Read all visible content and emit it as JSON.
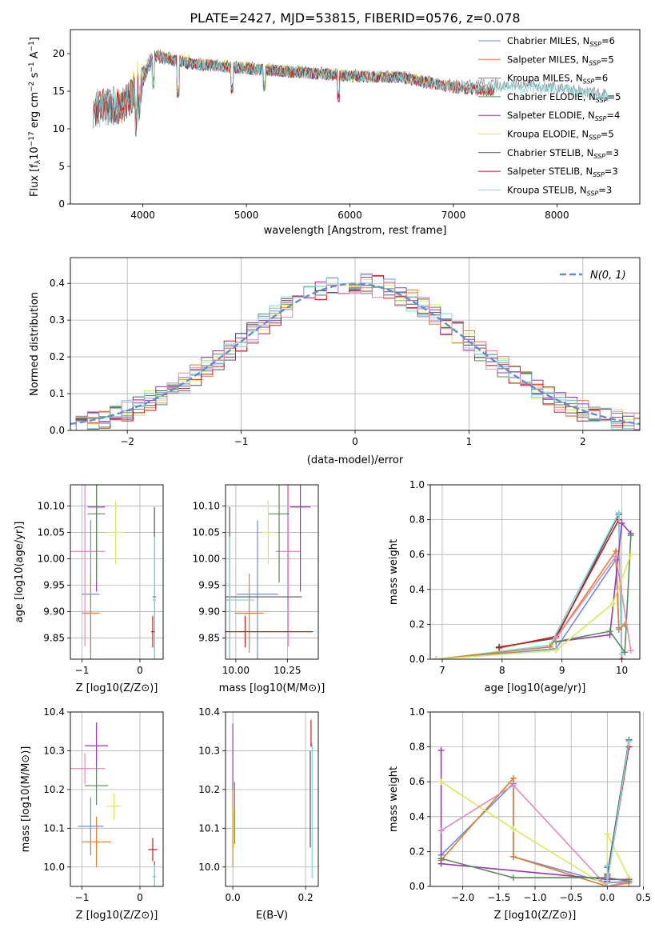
{
  "figure_title": "PLATE=2427, MJD=53815, FIBERID=0576, z=0.078",
  "colors": {
    "Chabrier MILES": "#6a8fd6",
    "Salpeter MILES": "#e37d2e",
    "Kroupa MILES": "#7f7f7f",
    "Chabrier ELODIE": "#5a8a5e",
    "Salpeter ELODIE": "#9b37b5",
    "Kroupa ELODIE": "#d9ea5a",
    "Chabrier STELIB": "#555555",
    "Salpeter STELIB": "#c41e1e",
    "Kroupa STELIB": "#7fd6dd",
    "normal_curve": "#5b8fd6",
    "pink": "#e38ab9",
    "grid": "#b0b0b0"
  },
  "chart_data": [
    {
      "type": "line",
      "id": "spectrum",
      "title": "PLATE=2427, MJD=53815, FIBERID=0576, z=0.078",
      "xlabel": "wavelength [Angstrom, rest frame]",
      "ylabel_parts": [
        "Flux [f",
        "λ",
        "10",
        "−17",
        " erg cm",
        "−2",
        " s",
        "−1",
        " A",
        "−1",
        "]"
      ],
      "xlim": [
        3300,
        8800
      ],
      "ylim": [
        0,
        23.2
      ],
      "xticks": [
        4000,
        5000,
        6000,
        7000,
        8000
      ],
      "yticks": [
        0,
        5,
        10,
        15,
        20
      ],
      "grid": false,
      "legend_position": "top-right",
      "series": [
        {
          "label": "Chabrier MILES",
          "nssp": "6",
          "color": "#6a8fd6",
          "x": [
            3520,
            3800,
            4000,
            4100,
            4500,
            5000,
            5500,
            6000,
            6500,
            7000,
            7400
          ],
          "y": [
            12.5,
            13.0,
            16.0,
            19.5,
            18.5,
            18.0,
            17.5,
            17.0,
            16.8,
            15.5,
            15.0
          ]
        },
        {
          "label": "Salpeter MILES",
          "nssp": "5",
          "color": "#e37d2e",
          "x": [
            3520,
            3800,
            4000,
            4100,
            4500,
            5000,
            5500,
            6000,
            6500,
            7000,
            7400
          ],
          "y": [
            12.8,
            13.2,
            16.2,
            19.8,
            18.7,
            18.1,
            17.6,
            17.1,
            16.9,
            15.6,
            15.1
          ]
        },
        {
          "label": "Kroupa MILES",
          "nssp": "6",
          "color": "#7f7f7f",
          "x": [
            3520,
            3800,
            4000,
            4100,
            4500,
            5000,
            5500,
            6000,
            6500,
            7000,
            7500,
            8000,
            8500
          ],
          "y": [
            13.0,
            13.5,
            16.5,
            20.0,
            18.8,
            18.2,
            17.7,
            17.2,
            17.0,
            15.8,
            16.0,
            15.5,
            14.5
          ]
        },
        {
          "label": "Chabrier ELODIE",
          "nssp": "5",
          "color": "#5a8a5e",
          "x": [
            3900,
            4100,
            4500,
            5000,
            5500,
            6000,
            6500,
            6800
          ],
          "y": [
            15.5,
            19.6,
            18.6,
            18.0,
            17.5,
            17.0,
            16.8,
            16.0
          ]
        },
        {
          "label": "Salpeter ELODIE",
          "nssp": "4",
          "color": "#9b37b5",
          "x": [
            3900,
            4100,
            4500,
            5000,
            5500,
            6000,
            6500,
            6800
          ],
          "y": [
            15.6,
            19.7,
            18.6,
            18.0,
            17.5,
            17.0,
            16.8,
            16.0
          ]
        },
        {
          "label": "Kroupa ELODIE",
          "nssp": "5",
          "color": "#d9ea5a",
          "x": [
            3900,
            4100,
            4500,
            5000,
            5500,
            6000,
            6500,
            6800
          ],
          "y": [
            15.8,
            20.0,
            18.9,
            18.2,
            17.6,
            17.1,
            16.9,
            16.1
          ]
        },
        {
          "label": "Chabrier STELIB",
          "nssp": "3",
          "color": "#555555",
          "x": [
            3520,
            3800,
            4000,
            4100,
            4500,
            5000,
            5500,
            6000,
            6500,
            7000,
            7400
          ],
          "y": [
            12.6,
            13.1,
            16.1,
            19.6,
            18.6,
            18.0,
            17.5,
            17.0,
            16.8,
            15.5,
            15.0
          ]
        },
        {
          "label": "Salpeter STELIB",
          "nssp": "3",
          "color": "#c41e1e",
          "x": [
            3520,
            3800,
            4000,
            4100,
            4500,
            5000,
            5500,
            6000,
            6500,
            7000,
            7400
          ],
          "y": [
            12.7,
            13.1,
            16.1,
            19.7,
            18.6,
            18.0,
            17.5,
            17.0,
            16.8,
            15.5,
            15.0
          ]
        },
        {
          "label": "Kroupa STELIB",
          "nssp": "3",
          "color": "#7fd6dd",
          "x": [
            3520,
            3800,
            4000,
            4100,
            4500,
            5000,
            5500,
            6000,
            6500,
            7000,
            7500,
            8000,
            8500
          ],
          "y": [
            12.5,
            13.0,
            16.0,
            19.8,
            18.6,
            18.0,
            17.5,
            17.0,
            16.8,
            15.5,
            15.6,
            15.3,
            14.2
          ]
        }
      ]
    },
    {
      "type": "line",
      "id": "residuals",
      "xlabel": "(data-model)/error",
      "ylabel": "Normed distribution",
      "xlim": [
        -2.5,
        2.5
      ],
      "ylim": [
        0,
        0.47
      ],
      "xticks": [
        -2,
        -1,
        0,
        1,
        2
      ],
      "yticks": [
        0.0,
        0.1,
        0.2,
        0.3,
        0.4
      ],
      "grid": true,
      "legend_position": "top-right",
      "legend_label": "N(0,1)",
      "curve": "standard normal pdf",
      "step_series_colors": [
        "#6a8fd6",
        "#e37d2e",
        "#d9ea5a",
        "#5a8a5e",
        "#9b37b5",
        "#555555",
        "#c41e1e",
        "#7fd6dd",
        "#e38ab9"
      ]
    },
    {
      "type": "scatter",
      "id": "age_vs_Z",
      "xlabel": "Z [log10(Z/Z⊙)]",
      "ylabel": "age [log10(age/yr)]",
      "xlim": [
        -1.2,
        0.4
      ],
      "ylim": [
        9.81,
        10.14
      ],
      "xticks": [
        -1,
        0
      ],
      "yticks": [
        9.85,
        9.9,
        9.95,
        10.0,
        10.05,
        10.1
      ],
      "grid": true,
      "points": [
        {
          "color": "#6a8fd6",
          "x": -0.85,
          "xerr": 0.15,
          "y": 9.933,
          "yerr": 0.14
        },
        {
          "color": "#e37d2e",
          "x": -0.85,
          "xerr": 0.15,
          "y": 9.897,
          "yerr": 0.075
        },
        {
          "color": "#e38ab9",
          "x": -0.95,
          "xerr": 0.35,
          "y": 10.014,
          "yerr": 0.18
        },
        {
          "color": "#9b37b5",
          "x": -0.75,
          "xerr": 0.15,
          "y": 10.098,
          "yerr": 0.16
        },
        {
          "color": "#5a8a5e",
          "x": -0.75,
          "xerr": 0.15,
          "y": 10.085,
          "yerr": 0.13
        },
        {
          "color": "#d9ea5a",
          "x": -0.42,
          "xerr": 0.15,
          "y": 10.05,
          "yerr": 0.06
        },
        {
          "color": "#555555",
          "x": 0.25,
          "xerr": 0.03,
          "y": 9.928,
          "yerr": 0.17
        },
        {
          "color": "#7fd6dd",
          "x": 0.25,
          "xerr": 0.03,
          "y": 9.922,
          "yerr": 0.12
        },
        {
          "color": "#c41e1e",
          "x": 0.22,
          "xerr": 0.03,
          "y": 9.862,
          "yerr": 0.03
        }
      ]
    },
    {
      "type": "scatter",
      "id": "age_vs_mass",
      "xlabel": "mass [log10(M/M⊙)]",
      "ylabel": "",
      "xlim": [
        9.95,
        10.4
      ],
      "ylim": [
        9.81,
        10.14
      ],
      "xticks": [
        10.0,
        10.25
      ],
      "yticks": [
        9.85,
        9.9,
        9.95,
        10.0,
        10.05,
        10.1
      ],
      "grid": true,
      "points": [
        {
          "color": "#6a8fd6",
          "x": 10.105,
          "xerr": 0.1,
          "y": 9.933,
          "yerr": 0.14
        },
        {
          "color": "#e37d2e",
          "x": 10.065,
          "xerr": 0.07,
          "y": 9.897,
          "yerr": 0.075
        },
        {
          "color": "#e38ab9",
          "x": 10.254,
          "xerr": 0.06,
          "y": 10.014,
          "yerr": 0.18
        },
        {
          "color": "#9b37b5",
          "x": 10.313,
          "xerr": 0.05,
          "y": 10.098,
          "yerr": 0.16
        },
        {
          "color": "#5a8a5e",
          "x": 10.21,
          "xerr": 0.05,
          "y": 10.085,
          "yerr": 0.13
        },
        {
          "color": "#d9ea5a",
          "x": 10.157,
          "xerr": 0.03,
          "y": 10.05,
          "yerr": 0.06
        },
        {
          "color": "#555555",
          "x": 9.97,
          "xerr": 0.35,
          "y": 9.928,
          "yerr": 0.17
        },
        {
          "color": "#7fd6dd",
          "x": 9.97,
          "xerr": 0.12,
          "y": 9.922,
          "yerr": 0.12
        },
        {
          "color": "#c41e1e",
          "x": 10.045,
          "xerr": 0.33,
          "y": 9.862,
          "yerr": 0.03
        }
      ]
    },
    {
      "type": "line",
      "id": "massweight_vs_age",
      "xlabel": "age [log10(age/yr)]",
      "ylabel": "mass weight",
      "xlim": [
        6.8,
        10.3
      ],
      "ylim": [
        0,
        1.0
      ],
      "xticks": [
        7,
        8,
        9,
        10
      ],
      "yticks": [
        0.0,
        0.2,
        0.4,
        0.6,
        0.8,
        1.0
      ],
      "grid": true,
      "series": [
        {
          "color": "#555555",
          "x": [
            7.95,
            8.9,
            9.95
          ],
          "y": [
            0.07,
            0.12,
            0.83
          ]
        },
        {
          "color": "#c41e1e",
          "x": [
            7.95,
            8.9,
            9.95,
            10.0
          ],
          "y": [
            0.065,
            0.13,
            0.8,
            0.0
          ]
        },
        {
          "color": "#7fd6dd",
          "x": [
            6.9,
            8.8,
            9.95,
            10.0
          ],
          "y": [
            0.0,
            0.08,
            0.84,
            0.03
          ]
        },
        {
          "color": "#6a8fd6",
          "x": [
            6.9,
            8.9,
            9.9,
            9.95
          ],
          "y": [
            0.0,
            0.06,
            0.57,
            0.18
          ]
        },
        {
          "color": "#e37d2e",
          "x": [
            6.9,
            8.8,
            9.9,
            9.95,
            10.05
          ],
          "y": [
            0.0,
            0.07,
            0.62,
            0.17,
            0.2
          ]
        },
        {
          "color": "#9b37b5",
          "x": [
            8.9,
            9.8,
            10.0,
            10.15
          ],
          "y": [
            0.1,
            0.14,
            0.78,
            0.72
          ]
        },
        {
          "color": "#5a8a5e",
          "x": [
            8.9,
            9.8,
            10.05,
            10.15
          ],
          "y": [
            0.1,
            0.16,
            0.04,
            0.71
          ]
        },
        {
          "color": "#d9ea5a",
          "x": [
            6.9,
            8.9,
            9.85,
            10.15
          ],
          "y": [
            0.0,
            0.05,
            0.32,
            0.6
          ]
        },
        {
          "color": "#e38ab9",
          "x": [
            8.9,
            9.9,
            10.15
          ],
          "y": [
            0.12,
            0.59,
            0.05
          ]
        }
      ]
    },
    {
      "type": "scatter",
      "id": "mass_vs_Z",
      "xlabel": "Z [log10(Z/Z⊙)]",
      "ylabel": "mass [log10(M/M⊙)]",
      "xlim": [
        -1.2,
        0.4
      ],
      "ylim": [
        9.95,
        10.4
      ],
      "xticks": [
        -1,
        0
      ],
      "yticks": [
        10.0,
        10.1,
        10.2,
        10.3,
        10.4
      ],
      "grid": true,
      "points": [
        {
          "color": "#6a8fd6",
          "x": -0.85,
          "xerr": 0.22,
          "y": 10.105,
          "yerr": 0.075
        },
        {
          "color": "#e37d2e",
          "x": -0.75,
          "xerr": 0.25,
          "y": 10.065,
          "yerr": 0.065
        },
        {
          "color": "#e38ab9",
          "x": -0.95,
          "xerr": 0.35,
          "y": 10.254,
          "yerr": 0.04
        },
        {
          "color": "#9b37b5",
          "x": -0.75,
          "xerr": 0.2,
          "y": 10.313,
          "yerr": 0.06
        },
        {
          "color": "#5a8a5e",
          "x": -0.75,
          "xerr": 0.2,
          "y": 10.21,
          "yerr": 0.05
        },
        {
          "color": "#d9ea5a",
          "x": -0.45,
          "xerr": 0.12,
          "y": 10.157,
          "yerr": 0.035
        },
        {
          "color": "#555555",
          "x": 0.25,
          "xerr": 0.03,
          "y": 9.975,
          "yerr": 0.04
        },
        {
          "color": "#7fd6dd",
          "x": 0.25,
          "xerr": 0.03,
          "y": 9.975,
          "yerr": 0.03
        },
        {
          "color": "#c41e1e",
          "x": 0.22,
          "xerr": 0.08,
          "y": 10.045,
          "yerr": 0.03
        }
      ]
    },
    {
      "type": "scatter",
      "id": "mass_vs_ebv",
      "xlabel": "E(B-V)",
      "ylabel": "",
      "xlim": [
        -0.02,
        0.235
      ],
      "ylim": [
        9.95,
        10.4
      ],
      "xticks": [
        0.0,
        0.2
      ],
      "yticks": [
        10.0,
        10.1,
        10.2,
        10.3,
        10.4
      ],
      "grid": true,
      "lines": [
        {
          "color": "#e37d2e",
          "x": 0.0,
          "y0": 10.0,
          "y1": 10.2
        },
        {
          "color": "#9b37b5",
          "x": 0.0,
          "y0": 10.2,
          "y1": 10.37
        },
        {
          "color": "#5a8a5e",
          "x": 0.005,
          "y0": 10.06,
          "y1": 10.22
        },
        {
          "color": "#d9ea5a",
          "x": 0.003,
          "y0": 10.05,
          "y1": 10.15
        },
        {
          "color": "#c41e1e",
          "x": 0.215,
          "y0": 10.31,
          "y1": 10.38
        },
        {
          "color": "#7fd6dd",
          "x": 0.218,
          "y0": 9.97,
          "y1": 10.32
        },
        {
          "color": "#555555",
          "x": 0.213,
          "y0": 10.05,
          "y1": 10.3
        }
      ]
    },
    {
      "type": "line",
      "id": "massweight_vs_Z",
      "xlabel": "Z [log10(Z/Z⊙)]",
      "ylabel": "mass weight",
      "xlim": [
        -2.45,
        0.45
      ],
      "ylim": [
        0,
        1.0
      ],
      "xticks": [
        -2.0,
        -1.5,
        -1.0,
        -0.5,
        0.0,
        0.5
      ],
      "yticks": [
        0.0,
        0.2,
        0.4,
        0.6,
        0.8,
        1.0
      ],
      "grid": true,
      "series": [
        {
          "color": "#6a8fd6",
          "x": [
            -2.3,
            -1.3,
            -1.3,
            0.0,
            0.3
          ],
          "y": [
            0.18,
            0.59,
            0.17,
            0.02,
            0.03
          ]
        },
        {
          "color": "#e37d2e",
          "x": [
            -2.3,
            -1.3,
            -1.3,
            0.0,
            0.3
          ],
          "y": [
            0.15,
            0.62,
            0.17,
            0.0,
            0.02
          ]
        },
        {
          "color": "#9b37b5",
          "x": [
            -2.3,
            -2.3,
            -2.3,
            0.0,
            0.3
          ],
          "y": [
            0.78,
            0.32,
            0.13,
            0.04,
            0.04
          ]
        },
        {
          "color": "#d9ea5a",
          "x": [
            -2.3,
            -1.3,
            0.0,
            0.0,
            0.3
          ],
          "y": [
            0.6,
            0.33,
            0.0,
            0.3,
            0.05
          ]
        },
        {
          "color": "#e38ab9",
          "x": [
            -2.3,
            -1.3,
            0.0,
            0.3
          ],
          "y": [
            0.32,
            0.58,
            0.0,
            0.03
          ]
        },
        {
          "color": "#5a8a5e",
          "x": [
            -2.3,
            -1.3,
            0.0,
            0.3
          ],
          "y": [
            0.16,
            0.05,
            0.05,
            0.03
          ]
        },
        {
          "color": "#555555",
          "x": [
            0.0,
            0.0,
            0.3
          ],
          "y": [
            0.11,
            0.06,
            0.84
          ]
        },
        {
          "color": "#c41e1e",
          "x": [
            0.0,
            0.0,
            0.3
          ],
          "y": [
            0.07,
            0.03,
            0.8
          ]
        },
        {
          "color": "#7fd6dd",
          "x": [
            0.0,
            0.0,
            0.3
          ],
          "y": [
            0.12,
            0.02,
            0.83
          ]
        }
      ]
    }
  ],
  "legend": [
    {
      "name": "Chabrier MILES",
      "nssp": "6"
    },
    {
      "name": "Salpeter MILES",
      "nssp": "5"
    },
    {
      "name": "Kroupa MILES",
      "nssp": "6"
    },
    {
      "name": "Chabrier ELODIE",
      "nssp": "5"
    },
    {
      "name": "Salpeter ELODIE",
      "nssp": "4"
    },
    {
      "name": "Kroupa ELODIE",
      "nssp": "5"
    },
    {
      "name": "Chabrier STELIB",
      "nssp": "3"
    },
    {
      "name": "Salpeter STELIB",
      "nssp": "3"
    },
    {
      "name": "Kroupa STELIB",
      "nssp": "3"
    }
  ]
}
